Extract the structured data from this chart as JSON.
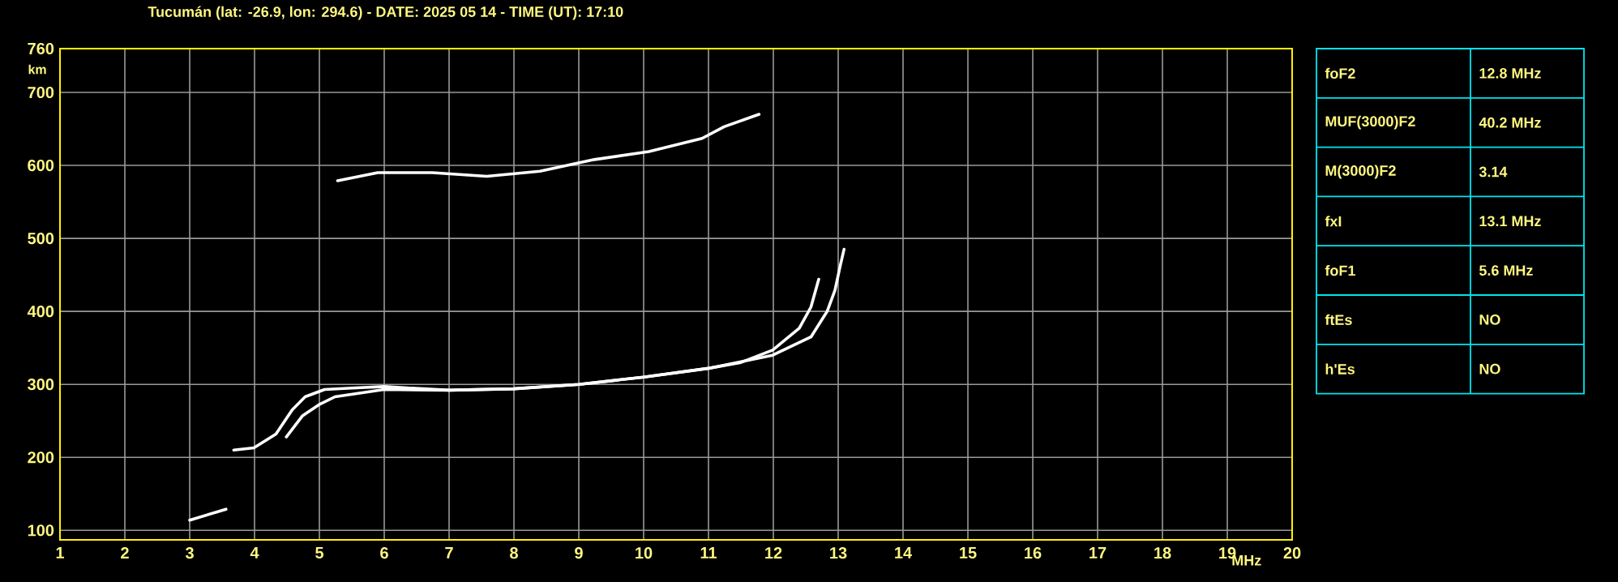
{
  "chart_data": [
    {
      "type": "line",
      "title": "Tucumán (lat: -26.9, lon: 294.6) - DATE: 2025 05 14 - TIME (UT): 17:10",
      "xlabel": "MHz",
      "ylabel": "km",
      "xlim": [
        1,
        20
      ],
      "ylim": [
        87,
        760
      ],
      "xticks": [
        1,
        2,
        3,
        4,
        5,
        6,
        7,
        8,
        9,
        10,
        11,
        12,
        13,
        14,
        15,
        16,
        17,
        18,
        19,
        20
      ],
      "yticks": [
        100,
        200,
        300,
        400,
        500,
        600,
        700,
        760
      ],
      "grid": true,
      "marker": "none",
      "line_style": "solid",
      "series": [
        {
          "color": "#ffffff",
          "x": [
            3.0,
            3.56
          ],
          "values": [
            114,
            129
          ]
        },
        {
          "color": "#ffffff",
          "x": [
            3.68,
            3.99,
            4.33,
            4.58,
            4.78,
            5.08,
            5.5,
            6.0,
            7.0,
            8.0,
            9.0,
            10.0,
            11.0,
            11.5,
            11.99,
            12.4,
            12.58,
            12.7
          ],
          "values": [
            210,
            213,
            232,
            265,
            283,
            293,
            295,
            297,
            292,
            294,
            300,
            310,
            322,
            330,
            347,
            377,
            406,
            444
          ]
        },
        {
          "color": "#ffffff",
          "x": [
            4.49,
            4.74,
            4.99,
            5.24,
            6.0,
            7.0,
            8.0,
            9.0,
            10.0,
            11.0,
            11.99,
            12.58,
            12.83,
            12.95,
            13.03,
            13.09
          ],
          "values": [
            228,
            257,
            272,
            283,
            293,
            292,
            294,
            300,
            310,
            322,
            340,
            365,
            400,
            429,
            462,
            485
          ]
        },
        {
          "color": "#ffffff",
          "x": [
            5.28,
            5.9,
            6.74,
            7.58,
            8.4,
            9.24,
            10.08,
            10.9,
            11.24,
            11.78
          ],
          "values": [
            579,
            590,
            590,
            585,
            592,
            608,
            619,
            637,
            653,
            670
          ]
        }
      ]
    },
    {
      "type": "other",
      "color": "#00e5ee",
      "categories": [
        "foF2",
        "MUF(3000)F2",
        "M(3000)F2",
        "fxI",
        "foF1",
        "ftEs",
        "h'Es"
      ],
      "value_labels": [
        "12.8 MHz",
        "40.2 MHz",
        "3.14",
        "13.1 MHz",
        "5.6 MHz",
        "NO",
        "NO"
      ]
    }
  ]
}
